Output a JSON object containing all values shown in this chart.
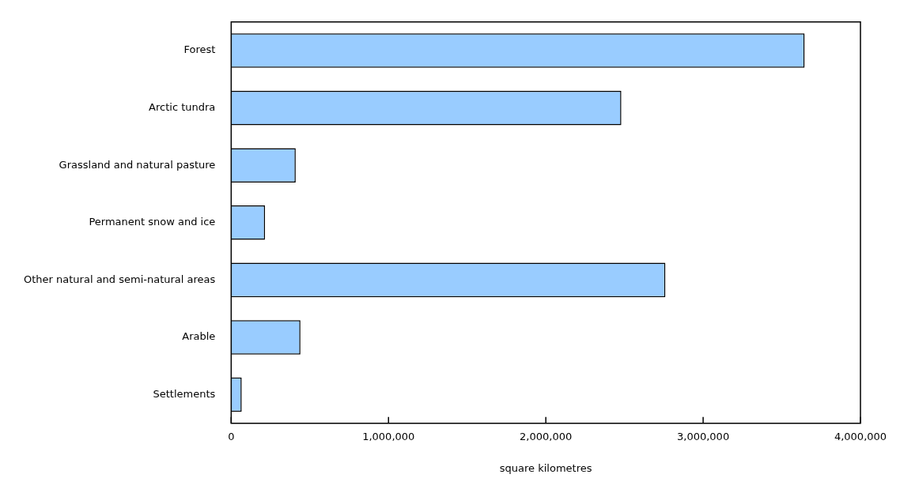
{
  "chart_data": {
    "type": "bar",
    "orientation": "horizontal",
    "xlabel": "square kilometres",
    "categories": [
      "Forest",
      "Arctic tundra",
      "Grassland and natural pasture",
      "Permanent snow and ice",
      "Other natural and semi-natural areas",
      "Arable",
      "Settlements"
    ],
    "values": [
      3645000,
      2480000,
      410000,
      215000,
      2760000,
      440000,
      67000
    ],
    "color": "#99ccff",
    "xlim": [
      0,
      4000000
    ],
    "xticks": [
      {
        "value": 0,
        "label": "0"
      },
      {
        "value": 1000000,
        "label": "1,000,000"
      },
      {
        "value": 2000000,
        "label": "2,000,000"
      },
      {
        "value": 3000000,
        "label": "3,000,000"
      },
      {
        "value": 4000000,
        "label": "4,000,000"
      }
    ],
    "legend": false
  }
}
